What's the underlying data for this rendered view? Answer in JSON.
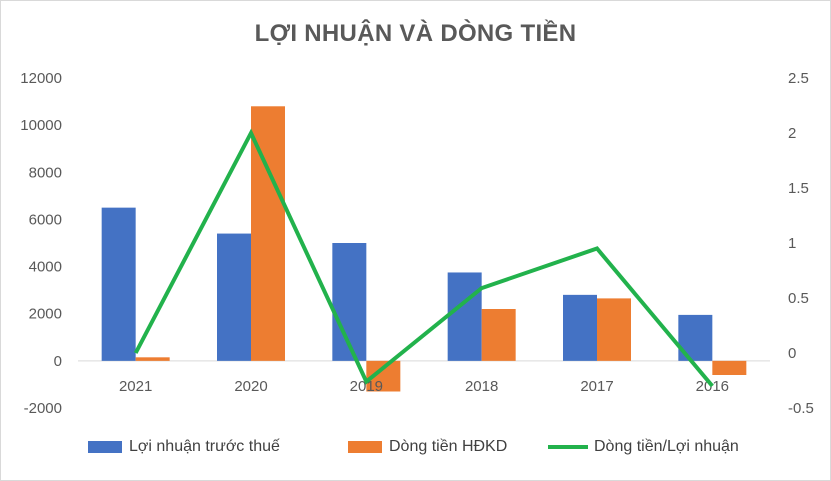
{
  "chart_data": {
    "type": "bar",
    "title": "LỢI NHUẬN VÀ DÒNG TIỀN",
    "categories": [
      "2021",
      "2020",
      "2019",
      "2018",
      "2017",
      "2016"
    ],
    "series": [
      {
        "name": "Lợi nhuận trước thuế",
        "type": "bar",
        "axis": "left",
        "color": "#4472c4",
        "values": [
          6500,
          5400,
          5000,
          3750,
          2800,
          1950
        ]
      },
      {
        "name": "Dòng tiền HĐKD",
        "type": "bar",
        "axis": "left",
        "color": "#ed7d31",
        "values": [
          150,
          10800,
          -1300,
          2200,
          2650,
          -600
        ]
      },
      {
        "name": "Dòng tiền/Lợi nhuận",
        "type": "line",
        "axis": "right",
        "color": "#22b24c",
        "values": [
          0.0,
          2.0,
          -0.26,
          0.59,
          0.95,
          -0.3
        ]
      }
    ],
    "yaxis_left": {
      "min": -2000,
      "max": 12000,
      "ticks": [
        "12000",
        "10000",
        "8000",
        "6000",
        "4000",
        "2000",
        "0",
        "-2000"
      ]
    },
    "yaxis_right": {
      "min": -0.5,
      "max": 2.5,
      "ticks": [
        "2.5",
        "2",
        "1.5",
        "1",
        "0.5",
        "0",
        "-0.5"
      ]
    },
    "grid": false,
    "legend_position": "bottom"
  }
}
